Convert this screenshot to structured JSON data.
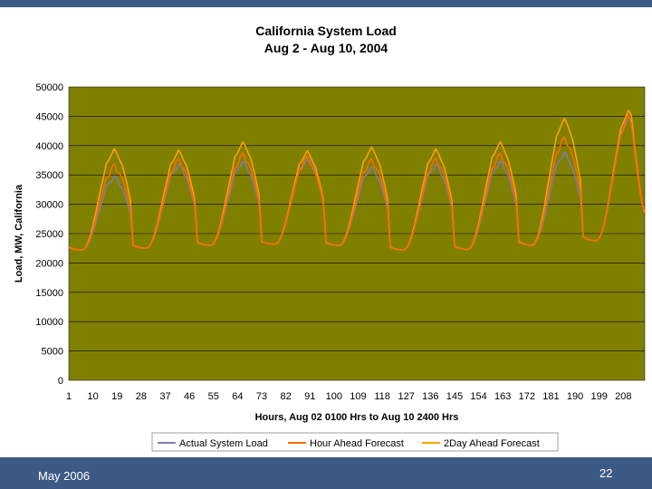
{
  "slide": {
    "footer_date": "May 2006",
    "page_number": "22"
  },
  "colors": {
    "plot_bg": "#808000",
    "actual": "#7a7fa8",
    "hour_ahead": "#ff6a00",
    "two_day": "#ffa000",
    "bar": "#3d5a85"
  },
  "chart_data": {
    "type": "line",
    "title": "California System Load",
    "subtitle": "Aug 2 - Aug 10, 2004",
    "xlabel": "Hours, Aug 02 0100 Hrs to Aug 10 2400 Hrs",
    "ylabel": "Load, MW, California",
    "ylim": [
      0,
      50000
    ],
    "xlim": [
      1,
      216
    ],
    "yticks": [
      "0",
      "5000",
      "10000",
      "15000",
      "20000",
      "25000",
      "30000",
      "35000",
      "40000",
      "45000",
      "50000"
    ],
    "xticks": [
      "1",
      "10",
      "19",
      "28",
      "37",
      "46",
      "55",
      "64",
      "73",
      "82",
      "91",
      "100",
      "109",
      "118",
      "127",
      "136",
      "145",
      "154",
      "163",
      "172",
      "181",
      "190",
      "199",
      "208"
    ],
    "grid": "horizontal",
    "legend_position": "bottom",
    "daily_profile": {
      "min": [
        22200,
        22500,
        23000,
        23200,
        23000,
        22200,
        22300,
        23000,
        23800
      ],
      "peak_actual": [
        34500,
        36500,
        37000,
        37500,
        36000,
        36500,
        37000,
        38500,
        44500
      ],
      "peak_two_day": [
        39000,
        38800,
        40200,
        38700,
        39300,
        39000,
        40200,
        44200,
        45600
      ],
      "end_value": 28500
    },
    "series": [
      {
        "name": "Actual System Load",
        "color": "#7a7fa8"
      },
      {
        "name": "Hour Ahead Forecast",
        "color": "#ff6a00"
      },
      {
        "name": "2Day Ahead Forecast",
        "color": "#ffa000"
      }
    ]
  }
}
